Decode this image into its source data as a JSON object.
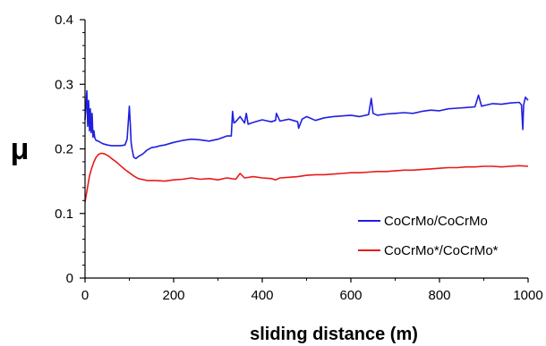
{
  "chart_data": {
    "type": "line",
    "xlabel": "sliding distance (m)",
    "ylabel": "μ",
    "xlim": [
      0,
      1000
    ],
    "ylim": [
      0,
      0.4
    ],
    "xticks": [
      0,
      200,
      400,
      600,
      800,
      1000
    ],
    "yticks": [
      0,
      0.1,
      0.2,
      0.3,
      0.4
    ],
    "xtick_labels": [
      "0",
      "200",
      "400",
      "600",
      "800",
      "1000"
    ],
    "ytick_labels": [
      "0",
      "0.1",
      "0.2",
      "0.3",
      "0.4"
    ],
    "grid": false,
    "legend_position": "lower-right",
    "series": [
      {
        "name": "CoCrMo/CoCrMo",
        "color": "#1f1fe0",
        "x": [
          0,
          2,
          4,
          6,
          8,
          10,
          12,
          14,
          16,
          18,
          20,
          22,
          25,
          30,
          35,
          40,
          50,
          60,
          70,
          80,
          90,
          95,
          98,
          100,
          102,
          104,
          106,
          110,
          115,
          120,
          130,
          140,
          150,
          160,
          170,
          180,
          190,
          200,
          220,
          240,
          260,
          280,
          300,
          320,
          330,
          333,
          336,
          340,
          350,
          360,
          364,
          368,
          375,
          390,
          400,
          420,
          430,
          432,
          440,
          460,
          480,
          482,
          490,
          500,
          520,
          540,
          560,
          580,
          600,
          620,
          640,
          646,
          650,
          660,
          680,
          700,
          720,
          740,
          760,
          780,
          800,
          820,
          840,
          860,
          880,
          888,
          895,
          900,
          920,
          940,
          960,
          980,
          985,
          988,
          990,
          994,
          1000
        ],
        "y": [
          0.245,
          0.265,
          0.29,
          0.235,
          0.275,
          0.228,
          0.262,
          0.225,
          0.255,
          0.218,
          0.228,
          0.217,
          0.213,
          0.212,
          0.21,
          0.208,
          0.206,
          0.205,
          0.205,
          0.205,
          0.206,
          0.215,
          0.245,
          0.266,
          0.24,
          0.21,
          0.2,
          0.187,
          0.185,
          0.188,
          0.192,
          0.198,
          0.202,
          0.203,
          0.205,
          0.206,
          0.208,
          0.21,
          0.213,
          0.215,
          0.214,
          0.212,
          0.215,
          0.22,
          0.22,
          0.258,
          0.24,
          0.242,
          0.25,
          0.24,
          0.255,
          0.238,
          0.24,
          0.243,
          0.245,
          0.242,
          0.244,
          0.255,
          0.243,
          0.246,
          0.242,
          0.232,
          0.246,
          0.25,
          0.244,
          0.248,
          0.25,
          0.251,
          0.252,
          0.25,
          0.253,
          0.278,
          0.255,
          0.252,
          0.254,
          0.255,
          0.256,
          0.255,
          0.258,
          0.26,
          0.259,
          0.262,
          0.263,
          0.264,
          0.265,
          0.283,
          0.266,
          0.267,
          0.27,
          0.269,
          0.271,
          0.272,
          0.268,
          0.23,
          0.268,
          0.28,
          0.275
        ]
      },
      {
        "name": "CoCrMo*/CoCrMo*",
        "color": "#e81a1a",
        "x": [
          0,
          3,
          6,
          10,
          15,
          20,
          25,
          30,
          35,
          40,
          45,
          50,
          55,
          60,
          70,
          80,
          90,
          100,
          110,
          120,
          140,
          160,
          180,
          200,
          220,
          240,
          260,
          280,
          300,
          320,
          340,
          350,
          360,
          380,
          400,
          420,
          430,
          440,
          460,
          480,
          500,
          520,
          540,
          560,
          580,
          600,
          620,
          640,
          660,
          680,
          700,
          720,
          740,
          760,
          780,
          800,
          820,
          840,
          860,
          880,
          900,
          920,
          940,
          960,
          980,
          1000
        ],
        "y": [
          0.118,
          0.13,
          0.142,
          0.158,
          0.17,
          0.18,
          0.187,
          0.191,
          0.193,
          0.193,
          0.192,
          0.19,
          0.188,
          0.185,
          0.18,
          0.174,
          0.168,
          0.163,
          0.158,
          0.154,
          0.151,
          0.151,
          0.15,
          0.152,
          0.153,
          0.155,
          0.153,
          0.154,
          0.152,
          0.155,
          0.153,
          0.162,
          0.155,
          0.157,
          0.155,
          0.154,
          0.152,
          0.155,
          0.156,
          0.157,
          0.159,
          0.16,
          0.16,
          0.161,
          0.162,
          0.163,
          0.163,
          0.164,
          0.165,
          0.165,
          0.166,
          0.167,
          0.167,
          0.168,
          0.169,
          0.17,
          0.171,
          0.171,
          0.172,
          0.172,
          0.173,
          0.173,
          0.172,
          0.173,
          0.174,
          0.173
        ]
      }
    ]
  }
}
